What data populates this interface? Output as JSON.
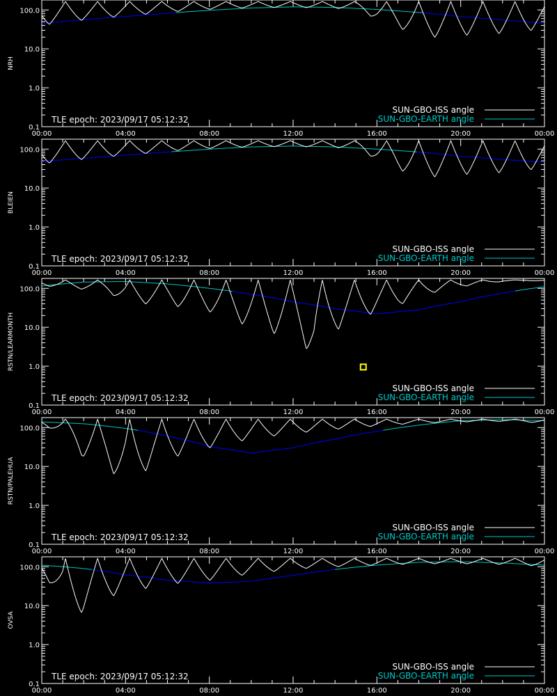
{
  "chart_data": [
    {
      "type": "line",
      "ylabel": "NRH",
      "yscale": "log",
      "ylim": [
        0.1,
        180
      ],
      "xlim": [
        "00:00",
        "24:00"
      ],
      "x_ticks": [
        "00:00",
        "04:00",
        "08:00",
        "12:00",
        "16:00",
        "20:00",
        "00:00"
      ],
      "y_ticks": [
        "0.1",
        "1.0",
        "10.0",
        "100.0"
      ],
      "grid": false,
      "annotation": "TLE epoch: 2023/09/17 05:12:32",
      "legend_position": "bottom-right",
      "colors": {
        "iss": "#ffffff",
        "earth_day": "#00c8c8",
        "earth_night": "#0000ff"
      },
      "series": [
        {
          "name": "SUN-GBO-ISS angle",
          "min_values": [
            40,
            48,
            55,
            62,
            70,
            78,
            88,
            96,
            104,
            110,
            114,
            116,
            116,
            114,
            110,
            104,
            55,
            35,
            20,
            20,
            22,
            24,
            25,
            27,
            35
          ]
        },
        {
          "name": "SUN-GBO-EARTH angle",
          "x_hours": [
            0,
            2,
            4,
            6,
            8,
            10,
            12,
            14,
            16,
            18,
            20,
            22,
            24
          ],
          "values": [
            45,
            56,
            68,
            82,
            98,
            112,
            120,
            116,
            103,
            86,
            68,
            55,
            45
          ]
        }
      ]
    },
    {
      "type": "line",
      "ylabel": "BLEIEN",
      "yscale": "log",
      "ylim": [
        0.1,
        180
      ],
      "xlim": [
        "00:00",
        "24:00"
      ],
      "x_ticks": [
        "00:00",
        "04:00",
        "08:00",
        "12:00",
        "16:00",
        "20:00",
        "00:00"
      ],
      "y_ticks": [
        "0.1",
        "1.0",
        "10.0",
        "100.0"
      ],
      "grid": false,
      "annotation": "TLE epoch: 2023/09/17 05:12:32",
      "legend_position": "bottom-right",
      "colors": {
        "iss": "#ffffff",
        "earth_day": "#00c8c8",
        "earth_night": "#0000ff"
      },
      "series": [
        {
          "name": "SUN-GBO-ISS angle",
          "min_values": [
            42,
            48,
            55,
            62,
            70,
            78,
            88,
            96,
            104,
            110,
            114,
            116,
            116,
            114,
            110,
            104,
            50,
            30,
            18,
            20,
            22,
            24,
            25,
            27,
            35
          ]
        },
        {
          "name": "SUN-GBO-EARTH angle",
          "x_hours": [
            0,
            2,
            4,
            6,
            8,
            10,
            12,
            14,
            16,
            18,
            20,
            22,
            24
          ],
          "values": [
            48,
            58,
            70,
            84,
            100,
            114,
            120,
            114,
            100,
            84,
            66,
            54,
            46
          ]
        }
      ]
    },
    {
      "type": "line",
      "ylabel": "RSTN/LEARMONTH",
      "yscale": "log",
      "ylim": [
        0.1,
        180
      ],
      "xlim": [
        "00:00",
        "24:00"
      ],
      "x_ticks": [
        "00:00",
        "04:00",
        "08:00",
        "12:00",
        "16:00",
        "20:00",
        "00:00"
      ],
      "y_ticks": [
        "0.1",
        "1.0",
        "10.0",
        "100.0"
      ],
      "grid": false,
      "annotation": "TLE epoch: 2023/09/17 05:12:32",
      "legend_position": "bottom-right",
      "marker": {
        "x_hour": 15.35,
        "y": 0.95,
        "color": "#ffff00"
      },
      "colors": {
        "iss": "#ffffff",
        "earth_day": "#00c8c8",
        "earth_night": "#0000ff"
      },
      "series": [
        {
          "name": "SUN-GBO-ISS angle",
          "min_values": [
            120,
            100,
            95,
            85,
            40,
            40,
            38,
            30,
            25,
            15,
            10,
            7,
            6,
            1,
            8,
            14,
            25,
            35,
            60,
            85,
            110,
            130,
            150,
            160,
            150
          ]
        },
        {
          "name": "SUN-GBO-EARTH angle",
          "x_hours": [
            0,
            2,
            4,
            6,
            8,
            10,
            12,
            14,
            16,
            18,
            20,
            22,
            24
          ],
          "values": [
            115,
            145,
            150,
            130,
            100,
            70,
            45,
            30,
            22,
            28,
            45,
            75,
            110
          ]
        }
      ]
    },
    {
      "type": "line",
      "ylabel": "RSTN/PALEHUA",
      "yscale": "log",
      "ylim": [
        0.1,
        180
      ],
      "xlim": [
        "00:00",
        "24:00"
      ],
      "x_ticks": [
        "00:00",
        "04:00",
        "08:00",
        "12:00",
        "16:00",
        "20:00",
        "00:00"
      ],
      "y_ticks": [
        "0.1",
        "1.0",
        "10.0",
        "100.0"
      ],
      "grid": false,
      "annotation": "TLE epoch: 2023/09/17 05:12:32",
      "legend_position": "bottom-right",
      "colors": {
        "iss": "#ffffff",
        "earth_day": "#00c8c8",
        "earth_night": "#0000ff"
      },
      "series": [
        {
          "name": "SUN-GBO-ISS angle",
          "min_values": [
            120,
            60,
            15,
            10,
            2,
            8,
            15,
            22,
            30,
            40,
            50,
            60,
            70,
            80,
            90,
            100,
            110,
            120,
            130,
            135,
            140,
            142,
            145,
            140,
            130
          ]
        },
        {
          "name": "SUN-GBO-EARTH angle",
          "x_hours": [
            0,
            2,
            4,
            6,
            8,
            10,
            12,
            14,
            16,
            18,
            20,
            22,
            24
          ],
          "values": [
            140,
            125,
            95,
            60,
            32,
            22,
            30,
            50,
            80,
            115,
            150,
            160,
            150
          ]
        }
      ]
    },
    {
      "type": "line",
      "ylabel": "OVSA",
      "yscale": "log",
      "ylim": [
        0.1,
        180
      ],
      "xlim": [
        "00:00",
        "24:00"
      ],
      "x_ticks": [
        "00:00",
        "04:00",
        "08:00",
        "12:00",
        "16:00",
        "20:00",
        "00:00"
      ],
      "y_ticks": [
        "0.1",
        "1.0",
        "10.0",
        "100.0"
      ],
      "grid": false,
      "annotation": "TLE epoch: 2023/09/17 05:12:32",
      "legend_position": "bottom-right",
      "colors": {
        "iss": "#ffffff",
        "earth_day": "#00c8c8",
        "earth_night": "#0000ff"
      },
      "series": [
        {
          "name": "SUN-GBO-ISS angle",
          "min_values": [
            60,
            4,
            7,
            15,
            22,
            28,
            35,
            40,
            45,
            55,
            65,
            75,
            85,
            95,
            100,
            105,
            110,
            115,
            118,
            120,
            120,
            118,
            115,
            110,
            100
          ]
        },
        {
          "name": "SUN-GBO-EARTH angle",
          "x_hours": [
            0,
            2,
            4,
            6,
            8,
            10,
            12,
            14,
            16,
            18,
            20,
            22,
            24
          ],
          "values": [
            110,
            90,
            62,
            45,
            38,
            42,
            60,
            85,
            110,
            130,
            135,
            125,
            110
          ]
        }
      ]
    }
  ]
}
